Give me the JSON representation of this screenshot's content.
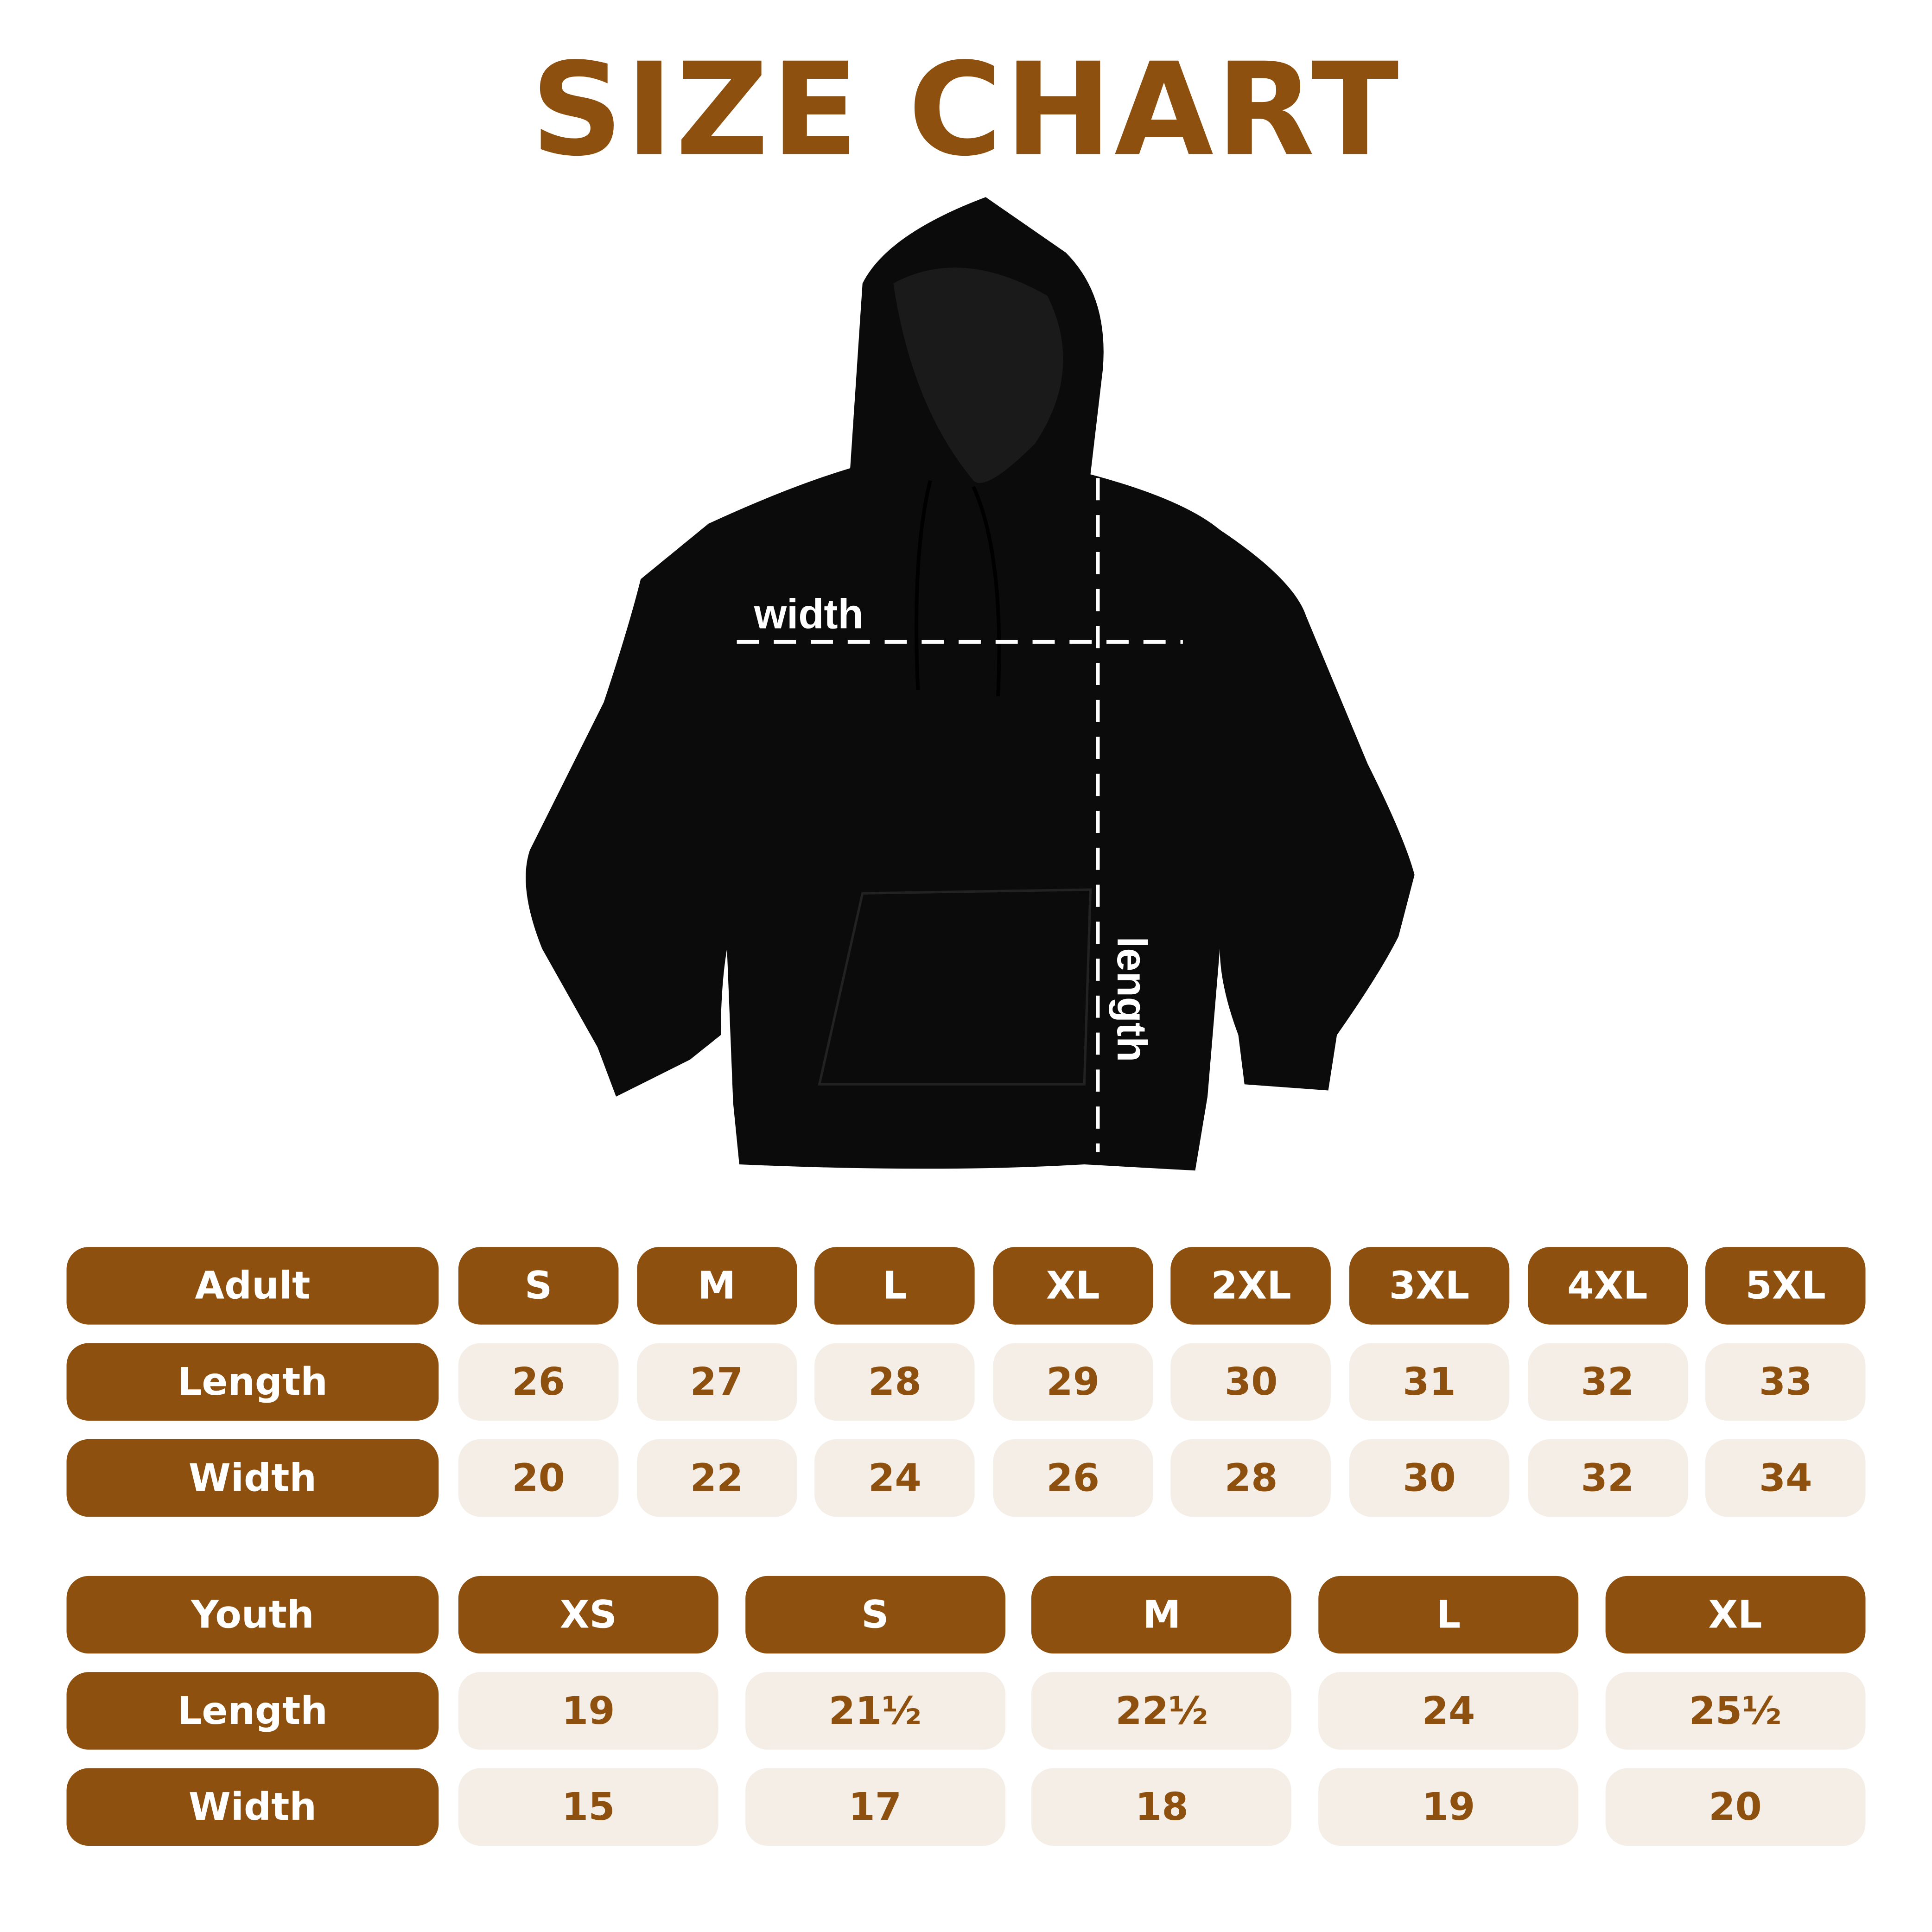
{
  "title": "SIZE CHART",
  "labels": {
    "width": "width",
    "length": "length"
  },
  "colors": {
    "brand": "#8E500E",
    "cell_bg": "#F4EEE6"
  },
  "adult": {
    "header": "Adult",
    "sizes": [
      "S",
      "M",
      "L",
      "XL",
      "2XL",
      "3XL",
      "4XL",
      "5XL"
    ],
    "rows": [
      {
        "label": "Length",
        "values": [
          "26",
          "27",
          "28",
          "29",
          "30",
          "31",
          "32",
          "33"
        ]
      },
      {
        "label": "Width",
        "values": [
          "20",
          "22",
          "24",
          "26",
          "28",
          "30",
          "32",
          "34"
        ]
      }
    ]
  },
  "youth": {
    "header": "Youth",
    "sizes": [
      "XS",
      "S",
      "M",
      "L",
      "XL"
    ],
    "rows": [
      {
        "label": "Length",
        "values": [
          "19",
          "21½",
          "22½",
          "24",
          "25½"
        ]
      },
      {
        "label": "Width",
        "values": [
          "15",
          "17",
          "18",
          "19",
          "20"
        ]
      }
    ]
  }
}
